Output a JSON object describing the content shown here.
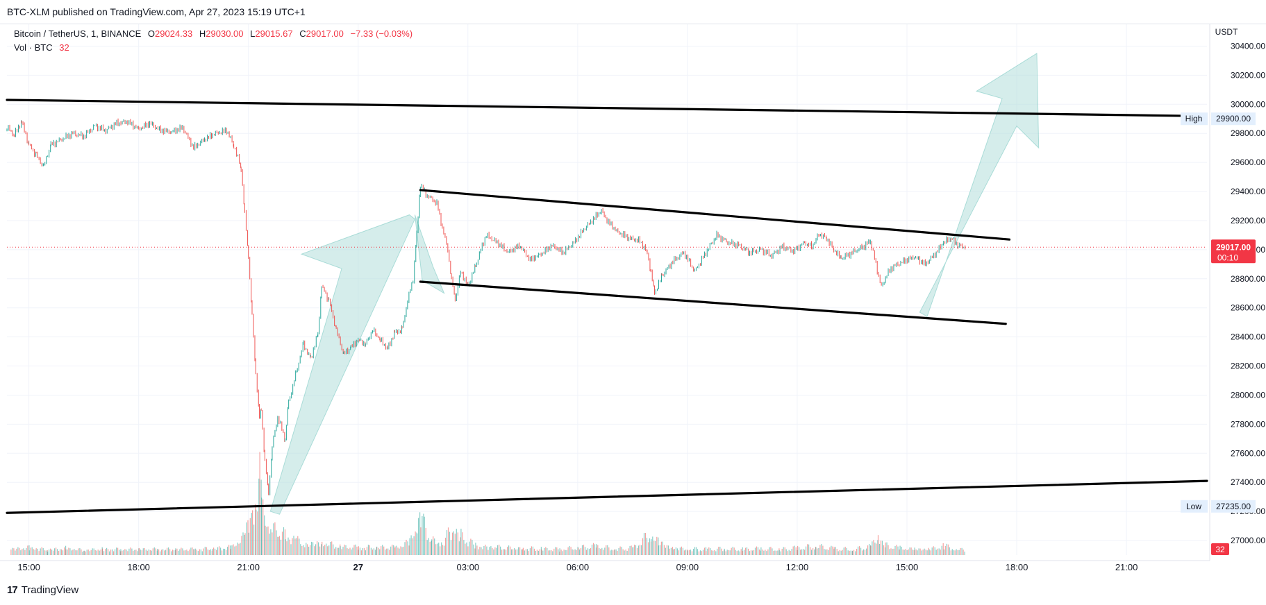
{
  "header": {
    "publisher_text": "BTC-XLM published on TradingView.com, Apr 27, 2023 15:19 UTC+1"
  },
  "legend": {
    "symbol": "Bitcoin / TetherUS, 1, BINANCE",
    "o_label": "O",
    "o_value": "29024.33",
    "h_label": "H",
    "h_value": "29030.00",
    "l_label": "L",
    "l_value": "29015.67",
    "c_label": "C",
    "c_value": "29017.00",
    "change": "−7.33 (−0.03%)",
    "vol_label": "Vol · BTC",
    "vol_value": "32"
  },
  "footer": {
    "brand": "TradingView",
    "logo_text": "17"
  },
  "colors": {
    "up": "#26a69a",
    "down": "#ef5350",
    "arrow_fill": "#b2dfdb",
    "price_badge": "#f23645",
    "hl_badge": "#e3effd"
  },
  "chart_data": {
    "type": "line",
    "currency_label": "USDT",
    "y_ticks": [
      "30400.00",
      "30200.00",
      "30000.00",
      "29800.00",
      "29600.00",
      "29400.00",
      "29200.00",
      "29000.00",
      "28800.00",
      "28600.00",
      "28400.00",
      "28200.00",
      "28000.00",
      "27800.00",
      "27600.00",
      "27400.00",
      "27200.00",
      "27000.00"
    ],
    "ylim": [
      26900,
      30550
    ],
    "x_ticks": [
      {
        "label": "15:00",
        "h": 15,
        "bold": false
      },
      {
        "label": "18:00",
        "h": 18,
        "bold": false
      },
      {
        "label": "21:00",
        "h": 21,
        "bold": false
      },
      {
        "label": "27",
        "h": 24,
        "bold": true
      },
      {
        "label": "03:00",
        "h": 27,
        "bold": false
      },
      {
        "label": "06:00",
        "h": 30,
        "bold": false
      },
      {
        "label": "09:00",
        "h": 33,
        "bold": false
      },
      {
        "label": "12:00",
        "h": 36,
        "bold": false
      },
      {
        "label": "15:00",
        "h": 39,
        "bold": false
      },
      {
        "label": "18:00",
        "h": 42,
        "bold": false
      },
      {
        "label": "21:00",
        "h": 45,
        "bold": false
      }
    ],
    "xlim_hours": [
      14.4,
      47.2
    ],
    "last_price": "29017.00",
    "last_price_value": 29017,
    "countdown": "00:10",
    "high": {
      "label": "High",
      "value": "29900.00",
      "v": 29900
    },
    "low": {
      "label": "Low",
      "value": "27235.00",
      "v": 27235
    },
    "volume_badge": "32",
    "price_path": [
      [
        14.4,
        29840
      ],
      [
        14.6,
        29790
      ],
      [
        14.8,
        29880
      ],
      [
        15.0,
        29720
      ],
      [
        15.2,
        29650
      ],
      [
        15.4,
        29570
      ],
      [
        15.6,
        29720
      ],
      [
        15.9,
        29760
      ],
      [
        16.2,
        29800
      ],
      [
        16.5,
        29780
      ],
      [
        16.8,
        29850
      ],
      [
        17.1,
        29820
      ],
      [
        17.4,
        29870
      ],
      [
        17.7,
        29880
      ],
      [
        18.0,
        29830
      ],
      [
        18.3,
        29870
      ],
      [
        18.6,
        29820
      ],
      [
        18.9,
        29810
      ],
      [
        19.2,
        29840
      ],
      [
        19.5,
        29700
      ],
      [
        19.8,
        29760
      ],
      [
        20.1,
        29800
      ],
      [
        20.4,
        29820
      ],
      [
        20.6,
        29720
      ],
      [
        20.8,
        29560
      ],
      [
        20.9,
        29250
      ],
      [
        21.0,
        28950
      ],
      [
        21.1,
        28550
      ],
      [
        21.2,
        28150
      ],
      [
        21.3,
        27850
      ],
      [
        21.35,
        27900
      ],
      [
        21.45,
        27550
      ],
      [
        21.55,
        27320
      ],
      [
        21.65,
        27650
      ],
      [
        21.8,
        27850
      ],
      [
        22.0,
        27700
      ],
      [
        22.1,
        27950
      ],
      [
        22.3,
        28150
      ],
      [
        22.5,
        28350
      ],
      [
        22.7,
        28250
      ],
      [
        22.9,
        28420
      ],
      [
        23.0,
        28750
      ],
      [
        23.2,
        28650
      ],
      [
        23.4,
        28450
      ],
      [
        23.6,
        28280
      ],
      [
        23.8,
        28330
      ],
      [
        24.0,
        28380
      ],
      [
        24.2,
        28350
      ],
      [
        24.4,
        28450
      ],
      [
        24.6,
        28380
      ],
      [
        24.8,
        28320
      ],
      [
        25.0,
        28430
      ],
      [
        25.2,
        28450
      ],
      [
        25.35,
        28650
      ],
      [
        25.5,
        28800
      ],
      [
        25.6,
        29100
      ],
      [
        25.7,
        29450
      ],
      [
        25.85,
        29380
      ],
      [
        26.0,
        29350
      ],
      [
        26.15,
        29320
      ],
      [
        26.3,
        29150
      ],
      [
        26.45,
        29000
      ],
      [
        26.55,
        28800
      ],
      [
        26.65,
        28650
      ],
      [
        26.8,
        28850
      ],
      [
        27.0,
        28750
      ],
      [
        27.2,
        28880
      ],
      [
        27.35,
        29000
      ],
      [
        27.5,
        29100
      ],
      [
        27.8,
        29050
      ],
      [
        28.1,
        28980
      ],
      [
        28.4,
        29030
      ],
      [
        28.7,
        28930
      ],
      [
        29.0,
        28970
      ],
      [
        29.3,
        29030
      ],
      [
        29.6,
        28980
      ],
      [
        29.9,
        29050
      ],
      [
        30.2,
        29150
      ],
      [
        30.5,
        29230
      ],
      [
        30.65,
        29270
      ],
      [
        30.8,
        29200
      ],
      [
        31.1,
        29120
      ],
      [
        31.4,
        29080
      ],
      [
        31.7,
        29060
      ],
      [
        31.9,
        28980
      ],
      [
        32.0,
        28850
      ],
      [
        32.1,
        28700
      ],
      [
        32.3,
        28820
      ],
      [
        32.6,
        28920
      ],
      [
        32.9,
        28980
      ],
      [
        33.2,
        28850
      ],
      [
        33.5,
        28980
      ],
      [
        33.8,
        29100
      ],
      [
        34.1,
        29050
      ],
      [
        34.4,
        29030
      ],
      [
        34.7,
        28980
      ],
      [
        35.0,
        29000
      ],
      [
        35.3,
        28960
      ],
      [
        35.6,
        29020
      ],
      [
        35.9,
        28990
      ],
      [
        36.2,
        29050
      ],
      [
        36.4,
        29020
      ],
      [
        36.6,
        29110
      ],
      [
        36.8,
        29080
      ],
      [
        37.0,
        29000
      ],
      [
        37.2,
        28940
      ],
      [
        37.5,
        28980
      ],
      [
        37.8,
        29020
      ],
      [
        38.0,
        29060
      ],
      [
        38.15,
        28900
      ],
      [
        38.3,
        28740
      ],
      [
        38.45,
        28830
      ],
      [
        38.6,
        28880
      ],
      [
        38.9,
        28920
      ],
      [
        39.2,
        28950
      ],
      [
        39.5,
        28900
      ],
      [
        39.8,
        28980
      ],
      [
        40.0,
        29050
      ],
      [
        40.2,
        29080
      ],
      [
        40.4,
        29030
      ],
      [
        40.6,
        29017
      ]
    ],
    "annotations": {
      "lines": [
        {
          "name": "upper-resistance-line",
          "from": [
            14.4,
            30030
          ],
          "to": [
            46.7,
            29920
          ]
        },
        {
          "name": "lower-support-line",
          "from": [
            14.4,
            27190
          ],
          "to": [
            47.2,
            27410
          ]
        },
        {
          "name": "channel-top-line",
          "from": [
            25.7,
            29410
          ],
          "to": [
            41.8,
            29070
          ]
        },
        {
          "name": "channel-bottom-line",
          "from": [
            25.7,
            28780
          ],
          "to": [
            41.7,
            28490
          ]
        }
      ],
      "arrows": [
        {
          "name": "rally-arrow-1",
          "points": [
            [
              21.6,
              27200
            ],
            [
              23.55,
              28870
            ],
            [
              22.45,
              28970
            ],
            [
              25.4,
              29240
            ],
            [
              25.55,
              29210
            ],
            [
              21.85,
              27180
            ]
          ]
        },
        {
          "name": "pullback-arrow",
          "points": [
            [
              25.55,
              29240
            ],
            [
              26.05,
              28880
            ],
            [
              26.35,
              28700
            ],
            [
              25.75,
              28790
            ]
          ]
        },
        {
          "name": "breakout-arrow",
          "points": [
            [
              39.35,
              28570
            ],
            [
              42.0,
              29850
            ],
            [
              42.6,
              29700
            ],
            [
              42.55,
              30350
            ],
            [
              40.9,
              30090
            ],
            [
              41.6,
              30040
            ],
            [
              39.55,
              28540
            ]
          ]
        }
      ]
    },
    "volume": [
      [
        14.5,
        10
      ],
      [
        15.0,
        12
      ],
      [
        15.5,
        9
      ],
      [
        16.0,
        11
      ],
      [
        16.5,
        8
      ],
      [
        17.0,
        10
      ],
      [
        17.5,
        9
      ],
      [
        18.0,
        10
      ],
      [
        18.5,
        9
      ],
      [
        19.0,
        10
      ],
      [
        19.5,
        9
      ],
      [
        20.0,
        11
      ],
      [
        20.5,
        12
      ],
      [
        20.9,
        30
      ],
      [
        21.0,
        55
      ],
      [
        21.1,
        70
      ],
      [
        21.2,
        90
      ],
      [
        21.3,
        120
      ],
      [
        21.35,
        80
      ],
      [
        21.45,
        60
      ],
      [
        21.6,
        50
      ],
      [
        21.8,
        40
      ],
      [
        22.0,
        30
      ],
      [
        22.3,
        22
      ],
      [
        22.6,
        18
      ],
      [
        23.0,
        20
      ],
      [
        23.5,
        14
      ],
      [
        24.0,
        12
      ],
      [
        24.5,
        13
      ],
      [
        25.0,
        12
      ],
      [
        25.4,
        20
      ],
      [
        25.6,
        55
      ],
      [
        25.7,
        70
      ],
      [
        25.8,
        45
      ],
      [
        26.0,
        25
      ],
      [
        26.3,
        20
      ],
      [
        26.6,
        45
      ],
      [
        26.8,
        30
      ],
      [
        27.2,
        15
      ],
      [
        27.8,
        12
      ],
      [
        28.5,
        11
      ],
      [
        29.0,
        10
      ],
      [
        29.5,
        9
      ],
      [
        30.0,
        12
      ],
      [
        30.5,
        14
      ],
      [
        31.0,
        10
      ],
      [
        31.5,
        11
      ],
      [
        32.0,
        35
      ],
      [
        32.2,
        20
      ],
      [
        32.6,
        12
      ],
      [
        33.0,
        10
      ],
      [
        33.5,
        9
      ],
      [
        34.0,
        10
      ],
      [
        34.5,
        9
      ],
      [
        35.0,
        10
      ],
      [
        35.5,
        9
      ],
      [
        36.0,
        11
      ],
      [
        36.5,
        14
      ],
      [
        37.0,
        10
      ],
      [
        37.5,
        9
      ],
      [
        38.0,
        13
      ],
      [
        38.2,
        30
      ],
      [
        38.4,
        15
      ],
      [
        38.8,
        11
      ],
      [
        39.2,
        10
      ],
      [
        39.6,
        10
      ],
      [
        40.0,
        14
      ],
      [
        40.3,
        11
      ],
      [
        40.6,
        8
      ]
    ]
  }
}
